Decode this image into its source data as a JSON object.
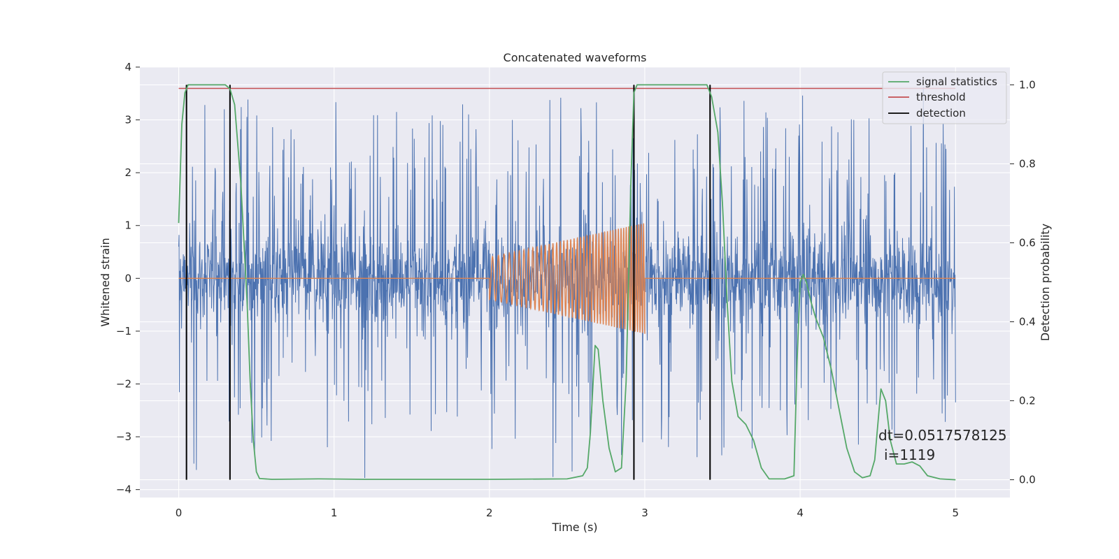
{
  "chart_data": {
    "type": "line",
    "title": "Concatenated waveforms",
    "xlabel": "Time (s)",
    "ylabel": "Whitened strain",
    "y2label": "Detection probability",
    "xlim": [
      -0.25,
      5.35
    ],
    "ylim": [
      -4.15,
      4.0
    ],
    "y2lim": [
      -0.045,
      1.045
    ],
    "xticks": [
      "0",
      "1",
      "2",
      "3",
      "4",
      "5"
    ],
    "xtick_values": [
      0,
      1,
      2,
      3,
      4,
      5
    ],
    "yticks": [
      "4",
      "3",
      "2",
      "1",
      "0",
      "−1",
      "−2",
      "−3",
      "−4"
    ],
    "ytick_values": [
      4,
      3,
      2,
      1,
      0,
      -1,
      -2,
      -3,
      -4
    ],
    "y2ticks": [
      "1.0",
      "0.8",
      "0.6",
      "0.4",
      "0.2",
      "0.0"
    ],
    "y2tick_values": [
      1.0,
      0.8,
      0.6,
      0.4,
      0.2,
      0.0
    ],
    "grid": true,
    "legend_position": "top-right",
    "legend": [
      {
        "name": "signal statistics",
        "color": "#55a868"
      },
      {
        "name": "threshold",
        "color": "#c44e52"
      },
      {
        "name": "detection",
        "color": "#000000"
      }
    ],
    "colors": {
      "noise": "#4c72b0",
      "waveform": "#dd8452",
      "statistic": "#55a868",
      "threshold": "#c44e52",
      "detection": "#000000",
      "background": "#eaeaf2",
      "grid": "#ffffff"
    },
    "series": [
      {
        "name": "signal statistics",
        "axis": "right",
        "x": [
          0,
          0.02,
          0.04,
          0.06,
          0.08,
          0.1,
          0.2,
          0.3,
          0.33,
          0.36,
          0.4,
          0.44,
          0.46,
          0.48,
          0.5,
          0.52,
          0.6,
          0.9,
          1.2,
          2.0,
          2.5,
          2.6,
          2.63,
          2.65,
          2.68,
          2.7,
          2.73,
          2.77,
          2.81,
          2.85,
          2.88,
          2.91,
          2.93,
          2.95,
          2.97,
          3.0,
          3.4,
          3.43,
          3.47,
          3.5,
          3.53,
          3.56,
          3.6,
          3.65,
          3.7,
          3.75,
          3.8,
          3.9,
          3.96,
          3.98,
          4.0,
          4.02,
          4.04,
          4.07,
          4.1,
          4.15,
          4.2,
          4.25,
          4.3,
          4.35,
          4.4,
          4.45,
          4.48,
          4.52,
          4.55,
          4.58,
          4.62,
          4.67,
          4.72,
          4.77,
          4.82,
          4.9,
          5.0
        ],
        "y": [
          0.65,
          0.9,
          0.98,
          1.0,
          1.0,
          1.0,
          1.0,
          1.0,
          0.99,
          0.95,
          0.75,
          0.45,
          0.25,
          0.1,
          0.02,
          0.003,
          0.001,
          0.002,
          0.001,
          0.001,
          0.002,
          0.01,
          0.03,
          0.12,
          0.34,
          0.33,
          0.2,
          0.08,
          0.02,
          0.03,
          0.25,
          0.75,
          0.98,
          1.0,
          1.0,
          1.0,
          1.0,
          0.97,
          0.88,
          0.7,
          0.45,
          0.25,
          0.16,
          0.14,
          0.1,
          0.03,
          0.002,
          0.002,
          0.01,
          0.3,
          0.5,
          0.52,
          0.5,
          0.45,
          0.41,
          0.36,
          0.28,
          0.18,
          0.08,
          0.02,
          0.005,
          0.01,
          0.05,
          0.23,
          0.2,
          0.1,
          0.04,
          0.04,
          0.045,
          0.035,
          0.01,
          0.002,
          0.0
        ]
      },
      {
        "name": "threshold",
        "axis": "right",
        "x": [
          0,
          5
        ],
        "y": [
          0.991,
          0.991
        ]
      }
    ],
    "detections_x": [
      0.05,
      0.33,
      2.93,
      3.42
    ],
    "detections_y": [
      0.0,
      1.0
    ],
    "noise": {
      "x_start": 0,
      "x_end": 5,
      "core_amplitude": 0.85,
      "peak_max": 3.63,
      "peak_min": -3.78
    },
    "injected_waveform": {
      "x_start": 2.0,
      "x_end": 3.0,
      "amplitude_start": 0.4,
      "amplitude_end": 1.05,
      "cycles": 45
    }
  },
  "annotation": {
    "line1": "dt=0.0517578125",
    "line2": "i=1119"
  }
}
